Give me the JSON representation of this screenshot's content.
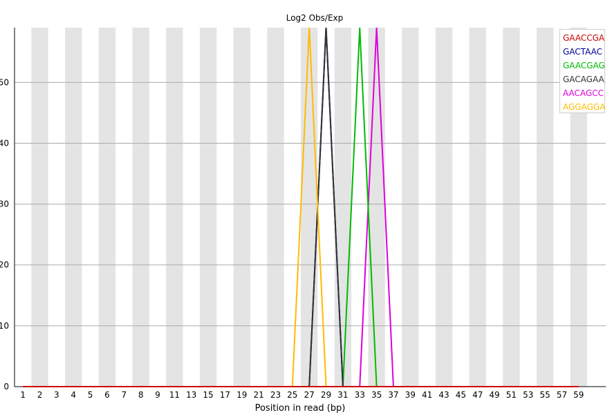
{
  "chart_data": {
    "type": "line",
    "title": "Log2 Obs/Exp",
    "xlabel": "Position in read (bp)",
    "ylabel": "",
    "x_tick_labels": [
      "1",
      "2",
      "3",
      "4",
      "5",
      "6",
      "7",
      "8",
      "9",
      "11",
      "13",
      "15",
      "17",
      "19",
      "21",
      "23",
      "25",
      "27",
      "29",
      "31",
      "33",
      "35",
      "37",
      "39",
      "41",
      "43",
      "45",
      "47",
      "49",
      "51",
      "53",
      "55",
      "57",
      "59"
    ],
    "y_ticks": [
      0,
      10,
      20,
      30,
      40,
      50
    ],
    "ylim": [
      0,
      59
    ],
    "grid": true,
    "legend_position": "top-right",
    "series": [
      {
        "name": "GAACCGA",
        "color": "#cc0000",
        "peak_bin": null,
        "peak": 0
      },
      {
        "name": "GACTAAC",
        "color": "#000099",
        "peak_bin": "29-30",
        "peak": 59
      },
      {
        "name": "GAACGAG",
        "color": "#00bb00",
        "peak_bin": "33-34",
        "peak": 59
      },
      {
        "name": "GACAGAA",
        "color": "#333333",
        "peak_bin": "29-30",
        "peak": 59
      },
      {
        "name": "AACAGCC",
        "color": "#dd00dd",
        "peak_bin": "35-36",
        "peak": 59
      },
      {
        "name": "AGGAGGA",
        "color": "#ffbb00",
        "peak_bin": "27-28",
        "peak": 59
      }
    ]
  }
}
